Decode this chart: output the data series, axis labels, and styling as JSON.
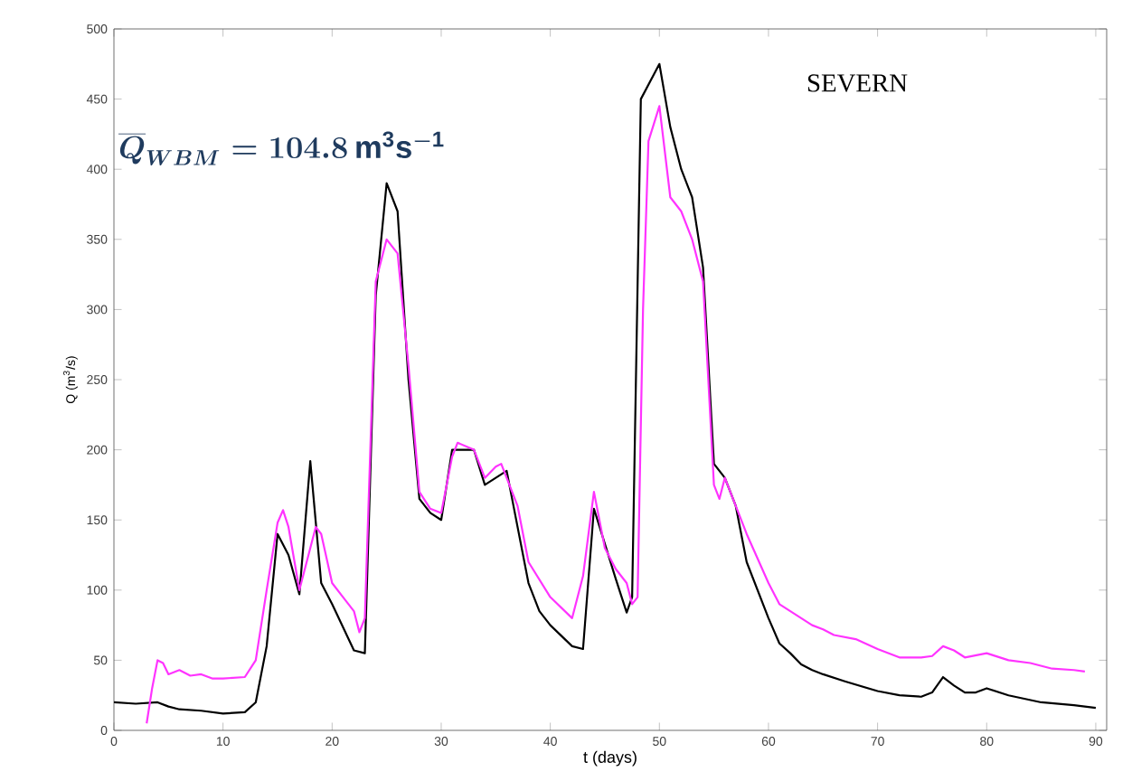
{
  "chart_data": {
    "type": "line",
    "xlabel": "t (days)",
    "ylabel": "Q (m$^{3}$/s)",
    "xlim": [
      0,
      91
    ],
    "ylim": [
      0,
      500
    ],
    "xticks": [
      0,
      10,
      20,
      30,
      40,
      50,
      60,
      70,
      80,
      90
    ],
    "yticks": [
      0,
      50,
      100,
      150,
      200,
      250,
      300,
      350,
      400,
      450,
      500
    ],
    "marker": "none",
    "line_style": "solid",
    "annotations": [
      "\\overline{Q}_{WBM} = 104.8\\,\\mathrm{m^{3}s^{-1}}",
      "SEVERN"
    ],
    "series": [
      {
        "color": "#000000",
        "x": [
          0,
          2,
          4,
          5,
          6,
          8,
          10,
          12,
          13,
          14,
          15,
          16,
          17,
          18,
          19,
          20,
          22,
          23,
          24,
          25,
          26,
          27,
          28,
          29,
          30,
          31,
          33,
          34,
          36,
          38,
          39,
          40,
          42,
          43,
          44,
          46,
          47,
          47.5,
          48.3,
          50,
          51,
          52,
          53,
          54,
          55,
          56,
          57,
          58,
          60,
          61,
          62,
          63,
          64,
          65,
          67,
          70,
          72,
          74,
          75,
          76,
          77,
          78,
          79,
          80,
          82,
          85,
          88,
          90
        ],
        "values": [
          20,
          19,
          20,
          17,
          15,
          14,
          12,
          13,
          20,
          60,
          140,
          125,
          97,
          192,
          105,
          90,
          57,
          55,
          310,
          390,
          370,
          250,
          165,
          155,
          150,
          200,
          200,
          175,
          185,
          105,
          85,
          75,
          60,
          58,
          158,
          108,
          84,
          95,
          450,
          475,
          430,
          400,
          380,
          330,
          190,
          180,
          160,
          120,
          80,
          62,
          55,
          47,
          43,
          40,
          35,
          28,
          25,
          24,
          27,
          38,
          32,
          27,
          27,
          30,
          25,
          20,
          18,
          16
        ]
      },
      {
        "color": "#ff33ff",
        "x": [
          3,
          3.5,
          4,
          4.5,
          5,
          6,
          7,
          8,
          9,
          10,
          12,
          13,
          14,
          15,
          15.5,
          16,
          17,
          18,
          18.5,
          19,
          20,
          21,
          22,
          22.5,
          23,
          24,
          25,
          26,
          27,
          28,
          29,
          30,
          31,
          31.5,
          33,
          34,
          35,
          35.5,
          37,
          38,
          40,
          42,
          43,
          44,
          45,
          46,
          47,
          47.5,
          48,
          48.5,
          49,
          50,
          51,
          52,
          53,
          54,
          55,
          55.5,
          56,
          57,
          58,
          60,
          61,
          62,
          64,
          65,
          66,
          68,
          70,
          72,
          74,
          75,
          76,
          77,
          78,
          80,
          82,
          84,
          86,
          88,
          89
        ],
        "values": [
          5,
          30,
          50,
          48,
          40,
          43,
          39,
          40,
          37,
          37,
          38,
          50,
          100,
          148,
          157,
          145,
          100,
          130,
          145,
          140,
          105,
          95,
          85,
          70,
          80,
          320,
          350,
          340,
          260,
          170,
          158,
          155,
          195,
          205,
          200,
          180,
          188,
          190,
          160,
          120,
          95,
          80,
          110,
          170,
          130,
          115,
          105,
          90,
          95,
          300,
          420,
          445,
          380,
          370,
          350,
          320,
          175,
          165,
          180,
          160,
          140,
          105,
          90,
          85,
          75,
          72,
          68,
          65,
          58,
          52,
          52,
          53,
          60,
          57,
          52,
          55,
          50,
          48,
          44,
          43,
          42
        ]
      }
    ]
  }
}
